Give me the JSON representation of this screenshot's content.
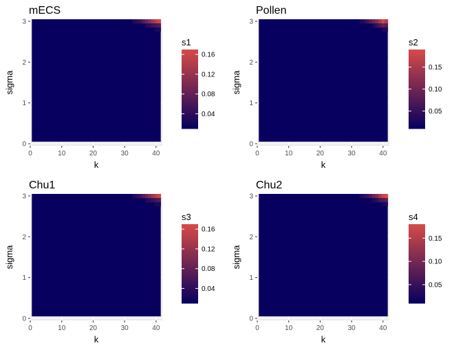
{
  "chart_data": [
    {
      "type": "heatmap",
      "title": "mECS",
      "xlabel": "k",
      "ylabel": "sigma",
      "xlim": [
        0,
        42
      ],
      "ylim": [
        -0.05,
        3.05
      ],
      "x_ticks": [
        0,
        10,
        20,
        30,
        40
      ],
      "y_ticks": [
        0,
        1,
        2,
        3
      ],
      "legend": {
        "title": "s1",
        "position": "right",
        "ticks": [
          0.04,
          0.08,
          0.12,
          0.16
        ],
        "range": [
          0.01,
          0.17
        ]
      },
      "colorscale": {
        "low": "#08005e",
        "high": "#d34a48"
      },
      "background_value": 0.01,
      "hot_cells": [
        {
          "k": 33,
          "sigma": 3.0,
          "value": 0.03
        },
        {
          "k": 34,
          "sigma": 3.0,
          "value": 0.04
        },
        {
          "k": 35,
          "sigma": 3.0,
          "value": 0.05
        },
        {
          "k": 36,
          "sigma": 3.0,
          "value": 0.07
        },
        {
          "k": 37,
          "sigma": 3.0,
          "value": 0.09
        },
        {
          "k": 38,
          "sigma": 3.0,
          "value": 0.11
        },
        {
          "k": 39,
          "sigma": 3.0,
          "value": 0.13
        },
        {
          "k": 40,
          "sigma": 3.0,
          "value": 0.15
        },
        {
          "k": 41,
          "sigma": 3.0,
          "value": 0.165
        },
        {
          "k": 37,
          "sigma": 2.9,
          "value": 0.03
        },
        {
          "k": 38,
          "sigma": 2.9,
          "value": 0.04
        },
        {
          "k": 39,
          "sigma": 2.9,
          "value": 0.05
        },
        {
          "k": 40,
          "sigma": 2.9,
          "value": 0.06
        },
        {
          "k": 41,
          "sigma": 2.9,
          "value": 0.07
        },
        {
          "k": 40,
          "sigma": 2.8,
          "value": 0.025
        },
        {
          "k": 41,
          "sigma": 2.8,
          "value": 0.03
        }
      ]
    },
    {
      "type": "heatmap",
      "title": "Pollen",
      "xlabel": "k",
      "ylabel": "sigma",
      "xlim": [
        0,
        42
      ],
      "ylim": [
        -0.05,
        3.05
      ],
      "x_ticks": [
        0,
        10,
        20,
        30,
        40
      ],
      "y_ticks": [
        0,
        1,
        2,
        3
      ],
      "legend": {
        "title": "s2",
        "position": "right",
        "ticks": [
          0.05,
          0.1,
          0.15
        ],
        "range": [
          0.01,
          0.19
        ]
      },
      "colorscale": {
        "low": "#08005e",
        "high": "#d34a48"
      },
      "background_value": 0.01,
      "hot_cells": [
        {
          "k": 33,
          "sigma": 3.0,
          "value": 0.03
        },
        {
          "k": 34,
          "sigma": 3.0,
          "value": 0.04
        },
        {
          "k": 35,
          "sigma": 3.0,
          "value": 0.06
        },
        {
          "k": 36,
          "sigma": 3.0,
          "value": 0.08
        },
        {
          "k": 37,
          "sigma": 3.0,
          "value": 0.1
        },
        {
          "k": 38,
          "sigma": 3.0,
          "value": 0.12
        },
        {
          "k": 39,
          "sigma": 3.0,
          "value": 0.15
        },
        {
          "k": 40,
          "sigma": 3.0,
          "value": 0.19
        },
        {
          "k": 41,
          "sigma": 3.0,
          "value": 0.16
        },
        {
          "k": 37,
          "sigma": 2.9,
          "value": 0.03
        },
        {
          "k": 38,
          "sigma": 2.9,
          "value": 0.05
        },
        {
          "k": 39,
          "sigma": 2.9,
          "value": 0.07
        },
        {
          "k": 40,
          "sigma": 2.9,
          "value": 0.09
        },
        {
          "k": 41,
          "sigma": 2.9,
          "value": 0.08
        },
        {
          "k": 40,
          "sigma": 2.8,
          "value": 0.03
        },
        {
          "k": 41,
          "sigma": 2.8,
          "value": 0.035
        }
      ]
    },
    {
      "type": "heatmap",
      "title": "Chu1",
      "xlabel": "k",
      "ylabel": "sigma",
      "xlim": [
        0,
        42
      ],
      "ylim": [
        -0.05,
        3.05
      ],
      "x_ticks": [
        0,
        10,
        20,
        30,
        40
      ],
      "y_ticks": [
        0,
        1,
        2,
        3
      ],
      "legend": {
        "title": "s3",
        "position": "right",
        "ticks": [
          0.04,
          0.08,
          0.12,
          0.16
        ],
        "range": [
          0.01,
          0.17
        ]
      },
      "colorscale": {
        "low": "#08005e",
        "high": "#d34a48"
      },
      "background_value": 0.01,
      "hot_cells": [
        {
          "k": 33,
          "sigma": 3.0,
          "value": 0.03
        },
        {
          "k": 34,
          "sigma": 3.0,
          "value": 0.04
        },
        {
          "k": 35,
          "sigma": 3.0,
          "value": 0.05
        },
        {
          "k": 36,
          "sigma": 3.0,
          "value": 0.07
        },
        {
          "k": 37,
          "sigma": 3.0,
          "value": 0.09
        },
        {
          "k": 38,
          "sigma": 3.0,
          "value": 0.11
        },
        {
          "k": 39,
          "sigma": 3.0,
          "value": 0.13
        },
        {
          "k": 40,
          "sigma": 3.0,
          "value": 0.15
        },
        {
          "k": 41,
          "sigma": 3.0,
          "value": 0.165
        },
        {
          "k": 37,
          "sigma": 2.9,
          "value": 0.03
        },
        {
          "k": 38,
          "sigma": 2.9,
          "value": 0.04
        },
        {
          "k": 39,
          "sigma": 2.9,
          "value": 0.05
        },
        {
          "k": 40,
          "sigma": 2.9,
          "value": 0.06
        },
        {
          "k": 41,
          "sigma": 2.9,
          "value": 0.07
        },
        {
          "k": 40,
          "sigma": 2.8,
          "value": 0.025
        },
        {
          "k": 41,
          "sigma": 2.8,
          "value": 0.03
        }
      ]
    },
    {
      "type": "heatmap",
      "title": "Chu2",
      "xlabel": "k",
      "ylabel": "sigma",
      "xlim": [
        0,
        42
      ],
      "ylim": [
        -0.05,
        3.05
      ],
      "x_ticks": [
        0,
        10,
        20,
        30,
        40
      ],
      "y_ticks": [
        0,
        1,
        2,
        3
      ],
      "legend": {
        "title": "s4",
        "position": "right",
        "ticks": [
          0.05,
          0.1,
          0.15
        ],
        "range": [
          0.01,
          0.18
        ]
      },
      "colorscale": {
        "low": "#08005e",
        "high": "#d34a48"
      },
      "background_value": 0.01,
      "hot_cells": [
        {
          "k": 33,
          "sigma": 3.0,
          "value": 0.03
        },
        {
          "k": 34,
          "sigma": 3.0,
          "value": 0.04
        },
        {
          "k": 35,
          "sigma": 3.0,
          "value": 0.05
        },
        {
          "k": 36,
          "sigma": 3.0,
          "value": 0.07
        },
        {
          "k": 37,
          "sigma": 3.0,
          "value": 0.09
        },
        {
          "k": 38,
          "sigma": 3.0,
          "value": 0.11
        },
        {
          "k": 39,
          "sigma": 3.0,
          "value": 0.14
        },
        {
          "k": 40,
          "sigma": 3.0,
          "value": 0.17
        },
        {
          "k": 41,
          "sigma": 3.0,
          "value": 0.18
        },
        {
          "k": 37,
          "sigma": 2.9,
          "value": 0.03
        },
        {
          "k": 38,
          "sigma": 2.9,
          "value": 0.04
        },
        {
          "k": 39,
          "sigma": 2.9,
          "value": 0.06
        },
        {
          "k": 40,
          "sigma": 2.9,
          "value": 0.07
        },
        {
          "k": 41,
          "sigma": 2.9,
          "value": 0.08
        },
        {
          "k": 40,
          "sigma": 2.8,
          "value": 0.025
        },
        {
          "k": 41,
          "sigma": 2.8,
          "value": 0.03
        }
      ]
    }
  ]
}
